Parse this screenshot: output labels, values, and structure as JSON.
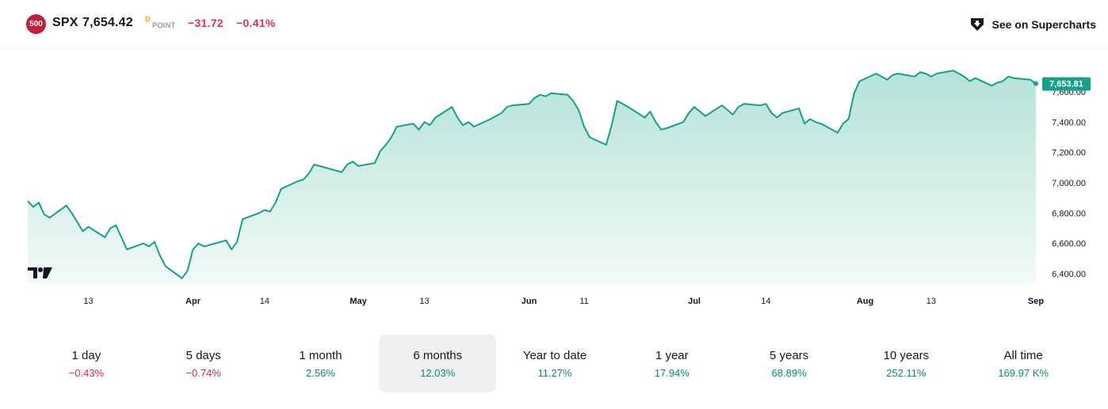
{
  "header": {
    "badge": "500",
    "symbol": "SPX",
    "price": "7,654.42",
    "price_superscript": "D",
    "unit": "POINT",
    "change": "−31.72",
    "change_percent": "−0.41%",
    "supercharts_label": "See on Supercharts"
  },
  "colors": {
    "line": "#15a08a",
    "area_top": "#b4e2d7",
    "area_bottom": "#f2faf8",
    "negative": "#d12f3e",
    "positive": "#0a8a74",
    "badge": "#c41e3a"
  },
  "chart_data": {
    "type": "area",
    "title": "",
    "xlabel": "",
    "ylabel": "",
    "ylim": [
      6330,
      7870
    ],
    "y_ticks": [
      "6,400.00",
      "6,600.00",
      "6,800.00",
      "7,000.00",
      "7,200.00",
      "7,400.00",
      "7,600.00"
    ],
    "y_tick_values": [
      6400,
      6600,
      6800,
      7000,
      7200,
      7400,
      7600
    ],
    "x_ticks": [
      {
        "label": "13",
        "date": "2026-03-13",
        "month": false
      },
      {
        "label": "Apr",
        "date": "2026-04-01",
        "month": true
      },
      {
        "label": "14",
        "date": "2026-04-14",
        "month": false
      },
      {
        "label": "May",
        "date": "2026-05-01",
        "month": true
      },
      {
        "label": "13",
        "date": "2026-05-13",
        "month": false
      },
      {
        "label": "Jun",
        "date": "2026-06-01",
        "month": true
      },
      {
        "label": "11",
        "date": "2026-06-11",
        "month": false
      },
      {
        "label": "Jul",
        "date": "2026-07-01",
        "month": true
      },
      {
        "label": "14",
        "date": "2026-07-14",
        "month": false
      },
      {
        "label": "Aug",
        "date": "2026-08-01",
        "month": true
      },
      {
        "label": "13",
        "date": "2026-08-13",
        "month": false
      },
      {
        "label": "Sep",
        "date": "2026-09-01",
        "month": true
      }
    ],
    "last_value_label": "7,653.81",
    "last_value": 7653.81,
    "series": [
      {
        "values": [
          [
            "2026-03-02",
            6880
          ],
          [
            "2026-03-03",
            6840
          ],
          [
            "2026-03-04",
            6870
          ],
          [
            "2026-03-05",
            6790
          ],
          [
            "2026-03-06",
            6770
          ],
          [
            "2026-03-09",
            6850
          ],
          [
            "2026-03-10",
            6800
          ],
          [
            "2026-03-11",
            6740
          ],
          [
            "2026-03-12",
            6680
          ],
          [
            "2026-03-13",
            6710
          ],
          [
            "2026-03-16",
            6640
          ],
          [
            "2026-03-17",
            6700
          ],
          [
            "2026-03-18",
            6720
          ],
          [
            "2026-03-19",
            6640
          ],
          [
            "2026-03-20",
            6560
          ],
          [
            "2026-03-23",
            6600
          ],
          [
            "2026-03-24",
            6580
          ],
          [
            "2026-03-25",
            6610
          ],
          [
            "2026-03-26",
            6520
          ],
          [
            "2026-03-27",
            6450
          ],
          [
            "2026-03-30",
            6370
          ],
          [
            "2026-03-31",
            6420
          ],
          [
            "2026-04-01",
            6560
          ],
          [
            "2026-04-02",
            6600
          ],
          [
            "2026-04-03",
            6580
          ],
          [
            "2026-04-06",
            6610
          ],
          [
            "2026-04-07",
            6620
          ],
          [
            "2026-04-08",
            6560
          ],
          [
            "2026-04-09",
            6610
          ],
          [
            "2026-04-10",
            6760
          ],
          [
            "2026-04-13",
            6800
          ],
          [
            "2026-04-14",
            6820
          ],
          [
            "2026-04-15",
            6810
          ],
          [
            "2026-04-16",
            6870
          ],
          [
            "2026-04-17",
            6960
          ],
          [
            "2026-04-20",
            7010
          ],
          [
            "2026-04-21",
            7020
          ],
          [
            "2026-04-22",
            7060
          ],
          [
            "2026-04-23",
            7120
          ],
          [
            "2026-04-24",
            7110
          ],
          [
            "2026-04-27",
            7080
          ],
          [
            "2026-04-28",
            7070
          ],
          [
            "2026-04-29",
            7120
          ],
          [
            "2026-04-30",
            7140
          ],
          [
            "2026-05-01",
            7110
          ],
          [
            "2026-05-04",
            7130
          ],
          [
            "2026-05-05",
            7210
          ],
          [
            "2026-05-06",
            7250
          ],
          [
            "2026-05-07",
            7300
          ],
          [
            "2026-05-08",
            7370
          ],
          [
            "2026-05-11",
            7390
          ],
          [
            "2026-05-12",
            7350
          ],
          [
            "2026-05-13",
            7400
          ],
          [
            "2026-05-14",
            7380
          ],
          [
            "2026-05-15",
            7430
          ],
          [
            "2026-05-18",
            7500
          ],
          [
            "2026-05-19",
            7430
          ],
          [
            "2026-05-20",
            7380
          ],
          [
            "2026-05-21",
            7400
          ],
          [
            "2026-05-22",
            7370
          ],
          [
            "2026-05-25",
            7420
          ],
          [
            "2026-05-26",
            7440
          ],
          [
            "2026-05-27",
            7460
          ],
          [
            "2026-05-28",
            7500
          ],
          [
            "2026-05-29",
            7510
          ],
          [
            "2026-06-01",
            7520
          ],
          [
            "2026-06-02",
            7560
          ],
          [
            "2026-06-03",
            7580
          ],
          [
            "2026-06-04",
            7570
          ],
          [
            "2026-06-05",
            7590
          ],
          [
            "2026-06-08",
            7580
          ],
          [
            "2026-06-09",
            7540
          ],
          [
            "2026-06-10",
            7480
          ],
          [
            "2026-06-11",
            7370
          ],
          [
            "2026-06-12",
            7300
          ],
          [
            "2026-06-15",
            7250
          ],
          [
            "2026-06-16",
            7380
          ],
          [
            "2026-06-17",
            7540
          ],
          [
            "2026-06-18",
            7520
          ],
          [
            "2026-06-19",
            7500
          ],
          [
            "2026-06-22",
            7430
          ],
          [
            "2026-06-23",
            7470
          ],
          [
            "2026-06-24",
            7400
          ],
          [
            "2026-06-25",
            7350
          ],
          [
            "2026-06-26",
            7360
          ],
          [
            "2026-06-29",
            7400
          ],
          [
            "2026-06-30",
            7460
          ],
          [
            "2026-07-01",
            7500
          ],
          [
            "2026-07-02",
            7470
          ],
          [
            "2026-07-03",
            7440
          ],
          [
            "2026-07-06",
            7510
          ],
          [
            "2026-07-07",
            7480
          ],
          [
            "2026-07-08",
            7450
          ],
          [
            "2026-07-09",
            7500
          ],
          [
            "2026-07-10",
            7520
          ],
          [
            "2026-07-13",
            7510
          ],
          [
            "2026-07-14",
            7520
          ],
          [
            "2026-07-15",
            7460
          ],
          [
            "2026-07-16",
            7430
          ],
          [
            "2026-07-17",
            7460
          ],
          [
            "2026-07-20",
            7490
          ],
          [
            "2026-07-21",
            7390
          ],
          [
            "2026-07-22",
            7420
          ],
          [
            "2026-07-23",
            7400
          ],
          [
            "2026-07-24",
            7390
          ],
          [
            "2026-07-27",
            7330
          ],
          [
            "2026-07-28",
            7390
          ],
          [
            "2026-07-29",
            7420
          ],
          [
            "2026-07-30",
            7590
          ],
          [
            "2026-07-31",
            7670
          ],
          [
            "2026-08-03",
            7720
          ],
          [
            "2026-08-04",
            7700
          ],
          [
            "2026-08-05",
            7680
          ],
          [
            "2026-08-06",
            7710
          ],
          [
            "2026-08-07",
            7720
          ],
          [
            "2026-08-10",
            7700
          ],
          [
            "2026-08-11",
            7730
          ],
          [
            "2026-08-12",
            7720
          ],
          [
            "2026-08-13",
            7700
          ],
          [
            "2026-08-14",
            7720
          ],
          [
            "2026-08-17",
            7740
          ],
          [
            "2026-08-18",
            7720
          ],
          [
            "2026-08-19",
            7700
          ],
          [
            "2026-08-20",
            7670
          ],
          [
            "2026-08-21",
            7690
          ],
          [
            "2026-08-24",
            7640
          ],
          [
            "2026-08-25",
            7660
          ],
          [
            "2026-08-26",
            7670
          ],
          [
            "2026-08-27",
            7700
          ],
          [
            "2026-08-28",
            7690
          ],
          [
            "2026-08-31",
            7680
          ],
          [
            "2026-09-01",
            7653.81
          ]
        ]
      }
    ]
  },
  "periods": [
    {
      "label": "1 day",
      "value": "−0.43%",
      "dir": "neg",
      "active": false
    },
    {
      "label": "5 days",
      "value": "−0.74%",
      "dir": "neg",
      "active": false
    },
    {
      "label": "1 month",
      "value": "2.56%",
      "dir": "pos",
      "active": false
    },
    {
      "label": "6 months",
      "value": "12.03%",
      "dir": "pos",
      "active": true
    },
    {
      "label": "Year to date",
      "value": "11.27%",
      "dir": "pos",
      "active": false
    },
    {
      "label": "1 year",
      "value": "17.94%",
      "dir": "pos",
      "active": false
    },
    {
      "label": "5 years",
      "value": "68.89%",
      "dir": "pos",
      "active": false
    },
    {
      "label": "10 years",
      "value": "252.11%",
      "dir": "pos",
      "active": false
    },
    {
      "label": "All time",
      "value": "169.97 K%",
      "dir": "pos",
      "active": false
    }
  ]
}
